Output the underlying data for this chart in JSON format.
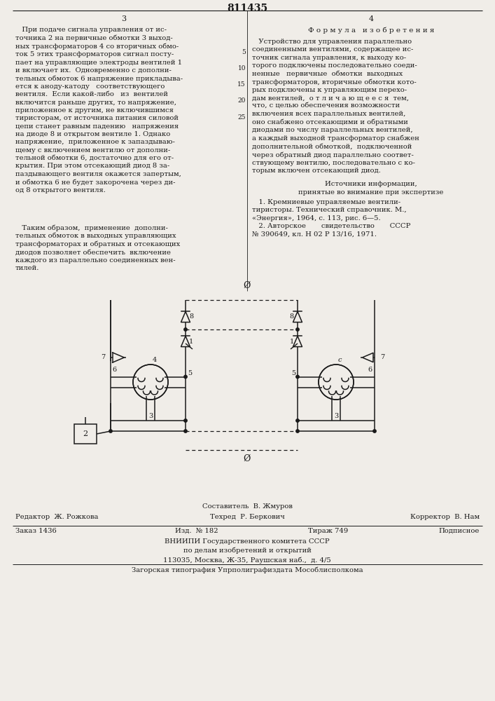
{
  "patent_number": "811435",
  "page_left": "3",
  "page_right": "4",
  "background": "#f0ede8",
  "text_color": "#1a1a1a",
  "line_color": "#1a1a1a",
  "footer_autor": "Составитель  В. Жмуров",
  "footer_editor": "Редактор  Ж. Рожкова",
  "footer_tech": "Техред  Р. Беркович",
  "footer_corrector": "Корректор  В. Нам",
  "footer_order": "Заказ 1436",
  "footer_edition": "Изд.  № 182",
  "footer_copies": "Тираж 749",
  "footer_subscription": "Подписное",
  "footer_org": "ВНИИПИ Государственного комитета СССР",
  "footer_org2": "по делам изобретений и открытий",
  "footer_address": "113035, Москва, Ж-35, Раушская наб.,  д. 4/5",
  "footer_print": "Загорская типография Упрполиграфиздата Мособлисполкома"
}
